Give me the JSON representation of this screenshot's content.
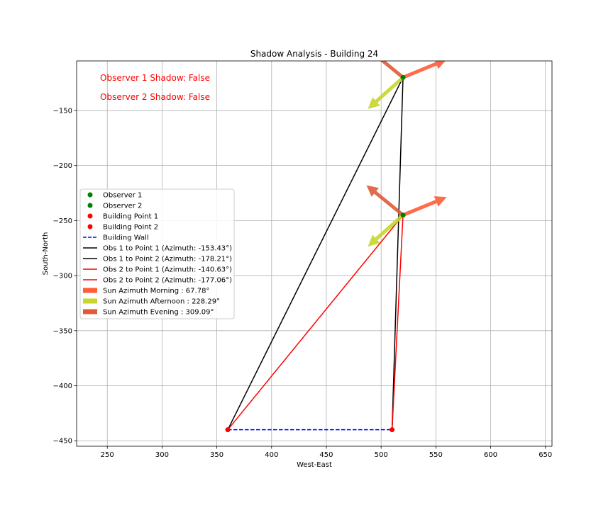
{
  "chart_data": {
    "type": "scatter",
    "title": "Shadow Analysis - Building 24",
    "xlabel": "West-East",
    "ylabel": "South-North",
    "xlim": [
      222,
      656
    ],
    "ylim": [
      -455,
      -105
    ],
    "grid": true,
    "legend_position": "center-left",
    "xticks": [
      250,
      300,
      350,
      400,
      450,
      500,
      550,
      600,
      650
    ],
    "yticks": [
      -150,
      -200,
      -250,
      -300,
      -350,
      -400,
      -450
    ],
    "xtick_labels": [
      "250",
      "300",
      "350",
      "400",
      "450",
      "500",
      "550",
      "600",
      "650"
    ],
    "ytick_labels": [
      "−150",
      "−200",
      "−250",
      "−300",
      "−350",
      "−400",
      "−450"
    ],
    "annotations": [
      {
        "text": "Observer 1 Shadow: False",
        "color": "#ff0000"
      },
      {
        "text": "Observer 2 Shadow: False",
        "color": "#ff0000"
      }
    ],
    "points": [
      {
        "name": "Observer 1",
        "x": 520,
        "y": -120,
        "color": "#008000"
      },
      {
        "name": "Observer 2",
        "x": 520,
        "y": -245,
        "color": "#008000"
      },
      {
        "name": "Building Point 1",
        "x": 360,
        "y": -440,
        "color": "#ff0000"
      },
      {
        "name": "Building Point 2",
        "x": 510,
        "y": -440,
        "color": "#ff0000"
      }
    ],
    "lines": [
      {
        "name": "Building Wall",
        "from": [
          360,
          -440
        ],
        "to": [
          510,
          -440
        ],
        "color": "#0000ff",
        "dashed": true
      },
      {
        "name": "Obs 1 to Point 1 (Azimuth: -153.43°)",
        "from": [
          520,
          -120
        ],
        "to": [
          360,
          -440
        ],
        "color": "#000000"
      },
      {
        "name": "Obs 1 to Point 2 (Azimuth: -178.21°)",
        "from": [
          520,
          -120
        ],
        "to": [
          510,
          -440
        ],
        "color": "#000000"
      },
      {
        "name": "Obs 2 to Point 1 (Azimuth: -140.63°)",
        "from": [
          520,
          -245
        ],
        "to": [
          360,
          -440
        ],
        "color": "#ff0000"
      },
      {
        "name": "Obs 2 to Point 2 (Azimuth: -177.06°)",
        "from": [
          520,
          -245
        ],
        "to": [
          510,
          -440
        ],
        "color": "#ff0000"
      }
    ],
    "sun_arrows": [
      {
        "name": "Sun Azimuth Morning : 67.78°",
        "azimuth": 67.78,
        "length": 43,
        "color": "#ff5c38"
      },
      {
        "name": "Sun Azimuth Afternoon : 228.29°",
        "azimuth": 228.29,
        "length": 43,
        "color": "#c8d62a"
      },
      {
        "name": "Sun Azimuth Evening : 309.09°",
        "azimuth": 309.09,
        "length": 43,
        "color": "#e05a38"
      }
    ],
    "legend": [
      {
        "label": "Observer 1",
        "kind": "marker",
        "color": "#008000"
      },
      {
        "label": "Observer 2",
        "kind": "marker",
        "color": "#008000"
      },
      {
        "label": "Building Point 1",
        "kind": "marker",
        "color": "#ff0000"
      },
      {
        "label": "Building Point 2",
        "kind": "marker",
        "color": "#ff0000"
      },
      {
        "label": "Building Wall",
        "kind": "dashed",
        "color": "#0000ff"
      },
      {
        "label": "Obs 1 to Point 1 (Azimuth: -153.43°)",
        "kind": "line",
        "color": "#000000"
      },
      {
        "label": "Obs 1 to Point 2 (Azimuth: -178.21°)",
        "kind": "line",
        "color": "#000000"
      },
      {
        "label": "Obs 2 to Point 1 (Azimuth: -140.63°)",
        "kind": "line",
        "color": "#ff0000"
      },
      {
        "label": "Obs 2 to Point 2 (Azimuth: -177.06°)",
        "kind": "line",
        "color": "#ff0000"
      },
      {
        "label": "Sun Azimuth Morning : 67.78°",
        "kind": "patch",
        "color": "#ff5c38"
      },
      {
        "label": "Sun Azimuth Afternoon : 228.29°",
        "kind": "patch",
        "color": "#c8d62a"
      },
      {
        "label": "Sun Azimuth Evening : 309.09°",
        "kind": "patch",
        "color": "#e05a38"
      }
    ]
  }
}
